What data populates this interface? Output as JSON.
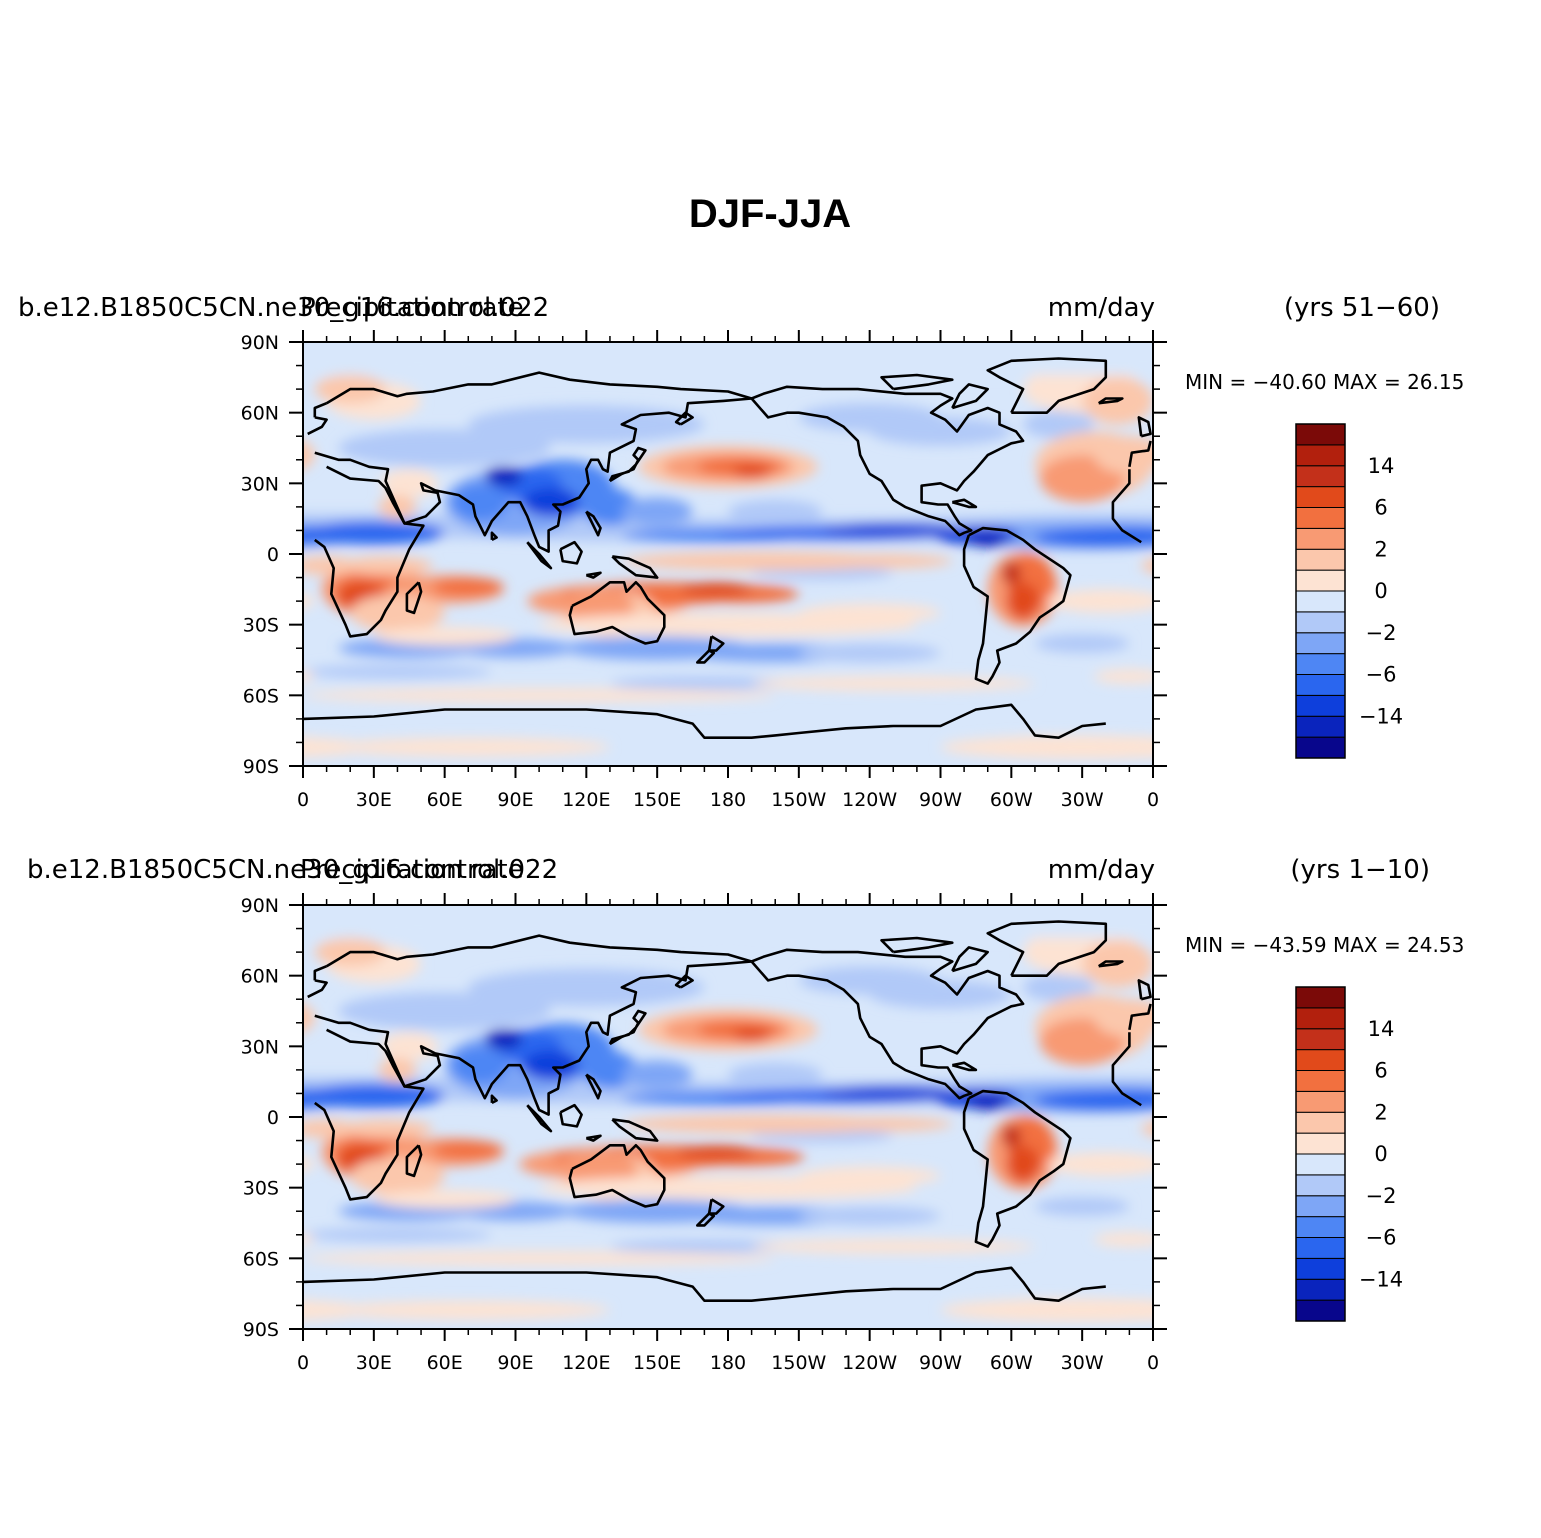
{
  "title": "DJF-JJA",
  "colors": {
    "levels": [
      "#08068c",
      "#0a24bd",
      "#0e3fdc",
      "#2a66ef",
      "#4e86f4",
      "#7ea6f6",
      "#b1c9f8",
      "#d8e7fb",
      "#fde3d3",
      "#fbc7ac",
      "#f89a73",
      "#f2703f",
      "#e14a1b",
      "#c3301a",
      "#b2200d",
      "#7b0a08"
    ],
    "coast": "#000000"
  },
  "longitude_labels": [
    "0",
    "30E",
    "60E",
    "90E",
    "120E",
    "150E",
    "180",
    "150W",
    "120W",
    "90W",
    "60W",
    "30W",
    "0"
  ],
  "latitude_labels": [
    "90N",
    "60N",
    "30N",
    "0",
    "30S",
    "60S",
    "90S"
  ],
  "colorbar_labels": [
    "14",
    "6",
    "2",
    "0",
    "−2",
    "−6",
    "−14"
  ],
  "panels": [
    {
      "case": "b.e12.B1850C5CN.ne30_g16.control.022",
      "variable": "Precipitation rate",
      "units": "mm/day",
      "years": "(yrs 51−60)",
      "minmax": "MIN = −40.60  MAX =   26.15"
    },
    {
      "case": "b.e12.B1850C5CN.ne30_g16.control.022",
      "variable": "Precipitation rate",
      "units": "mm/day",
      "years": "(yrs 1−10)",
      "minmax": "MIN = −43.59  MAX =   24.53"
    }
  ]
}
